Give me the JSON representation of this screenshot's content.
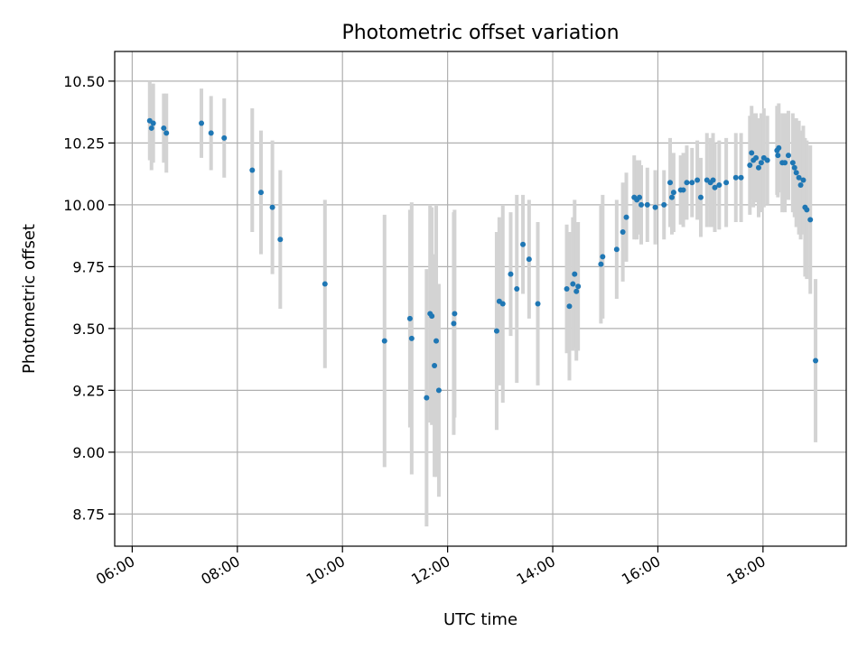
{
  "chart_data": {
    "type": "scatter",
    "title": "Photometric offset variation",
    "xlabel": "UTC time",
    "ylabel": "Photometric offset",
    "x_axis_type": "time",
    "xlim": [
      "05:40",
      "19:35"
    ],
    "ylim": [
      8.62,
      10.62
    ],
    "x_ticks": [
      "06:00",
      "08:00",
      "10:00",
      "12:00",
      "14:00",
      "16:00",
      "18:00"
    ],
    "y_ticks": [
      "8.75",
      "9.00",
      "9.25",
      "9.50",
      "9.75",
      "10.00",
      "10.25",
      "10.50"
    ],
    "grid": true,
    "colors": {
      "points": "#1f77b4",
      "error_bars": "#d3d3d3",
      "grid": "#b0b0b0"
    },
    "points": [
      {
        "x": "06:20",
        "y": 10.34,
        "err": 0.16
      },
      {
        "x": "06:22",
        "y": 10.31,
        "err": 0.17
      },
      {
        "x": "06:24",
        "y": 10.33,
        "err": 0.16
      },
      {
        "x": "06:36",
        "y": 10.31,
        "err": 0.14
      },
      {
        "x": "06:39",
        "y": 10.29,
        "err": 0.16
      },
      {
        "x": "07:19",
        "y": 10.33,
        "err": 0.14
      },
      {
        "x": "07:30",
        "y": 10.29,
        "err": 0.15
      },
      {
        "x": "07:45",
        "y": 10.27,
        "err": 0.16
      },
      {
        "x": "08:17",
        "y": 10.14,
        "err": 0.25
      },
      {
        "x": "08:27",
        "y": 10.05,
        "err": 0.25
      },
      {
        "x": "08:40",
        "y": 9.99,
        "err": 0.27
      },
      {
        "x": "08:49",
        "y": 9.86,
        "err": 0.28
      },
      {
        "x": "09:40",
        "y": 9.68,
        "err": 0.34
      },
      {
        "x": "10:48",
        "y": 9.45,
        "err": 0.51
      },
      {
        "x": "11:17",
        "y": 9.54,
        "err": 0.44
      },
      {
        "x": "11:19",
        "y": 9.46,
        "err": 0.55
      },
      {
        "x": "11:36",
        "y": 9.22,
        "err": 0.52
      },
      {
        "x": "11:40",
        "y": 9.56,
        "err": 0.44
      },
      {
        "x": "11:42",
        "y": 9.55,
        "err": 0.44
      },
      {
        "x": "11:45",
        "y": 9.35,
        "err": 0.45
      },
      {
        "x": "11:47",
        "y": 9.45,
        "err": 0.55
      },
      {
        "x": "11:50",
        "y": 9.25,
        "err": 0.43
      },
      {
        "x": "12:07",
        "y": 9.52,
        "err": 0.45
      },
      {
        "x": "12:08",
        "y": 9.56,
        "err": 0.42
      },
      {
        "x": "12:56",
        "y": 9.49,
        "err": 0.4
      },
      {
        "x": "12:59",
        "y": 9.61,
        "err": 0.34
      },
      {
        "x": "13:03",
        "y": 9.6,
        "err": 0.4
      },
      {
        "x": "13:12",
        "y": 9.72,
        "err": 0.25
      },
      {
        "x": "13:19",
        "y": 9.66,
        "err": 0.38
      },
      {
        "x": "13:26",
        "y": 9.84,
        "err": 0.2
      },
      {
        "x": "13:33",
        "y": 9.78,
        "err": 0.24
      },
      {
        "x": "13:43",
        "y": 9.6,
        "err": 0.33
      },
      {
        "x": "14:16",
        "y": 9.66,
        "err": 0.26
      },
      {
        "x": "14:19",
        "y": 9.59,
        "err": 0.3
      },
      {
        "x": "14:23",
        "y": 9.68,
        "err": 0.27
      },
      {
        "x": "14:25",
        "y": 9.72,
        "err": 0.3
      },
      {
        "x": "14:27",
        "y": 9.65,
        "err": 0.28
      },
      {
        "x": "14:29",
        "y": 9.67,
        "err": 0.26
      },
      {
        "x": "14:55",
        "y": 9.76,
        "err": 0.24
      },
      {
        "x": "14:57",
        "y": 9.79,
        "err": 0.25
      },
      {
        "x": "15:13",
        "y": 9.82,
        "err": 0.2
      },
      {
        "x": "15:20",
        "y": 9.89,
        "err": 0.2
      },
      {
        "x": "15:24",
        "y": 9.95,
        "err": 0.18
      },
      {
        "x": "15:33",
        "y": 10.03,
        "err": 0.17
      },
      {
        "x": "15:36",
        "y": 10.02,
        "err": 0.16
      },
      {
        "x": "15:39",
        "y": 10.03,
        "err": 0.15
      },
      {
        "x": "15:41",
        "y": 10.0,
        "err": 0.16
      },
      {
        "x": "15:48",
        "y": 10.0,
        "err": 0.15
      },
      {
        "x": "15:57",
        "y": 9.99,
        "err": 0.15
      },
      {
        "x": "16:07",
        "y": 10.0,
        "err": 0.14
      },
      {
        "x": "16:14",
        "y": 10.09,
        "err": 0.18
      },
      {
        "x": "16:16",
        "y": 10.03,
        "err": 0.15
      },
      {
        "x": "16:18",
        "y": 10.05,
        "err": 0.16
      },
      {
        "x": "16:26",
        "y": 10.06,
        "err": 0.14
      },
      {
        "x": "16:29",
        "y": 10.06,
        "err": 0.15
      },
      {
        "x": "16:33",
        "y": 10.09,
        "err": 0.15
      },
      {
        "x": "16:39",
        "y": 10.09,
        "err": 0.14
      },
      {
        "x": "16:45",
        "y": 10.1,
        "err": 0.16
      },
      {
        "x": "16:49",
        "y": 10.03,
        "err": 0.16
      },
      {
        "x": "16:56",
        "y": 10.1,
        "err": 0.19
      },
      {
        "x": "17:00",
        "y": 10.09,
        "err": 0.18
      },
      {
        "x": "17:03",
        "y": 10.1,
        "err": 0.19
      },
      {
        "x": "17:05",
        "y": 10.07,
        "err": 0.18
      },
      {
        "x": "17:10",
        "y": 10.08,
        "err": 0.18
      },
      {
        "x": "17:18",
        "y": 10.09,
        "err": 0.18
      },
      {
        "x": "17:29",
        "y": 10.11,
        "err": 0.18
      },
      {
        "x": "17:35",
        "y": 10.11,
        "err": 0.18
      },
      {
        "x": "17:45",
        "y": 10.16,
        "err": 0.2
      },
      {
        "x": "17:47",
        "y": 10.21,
        "err": 0.19
      },
      {
        "x": "17:49",
        "y": 10.18,
        "err": 0.19
      },
      {
        "x": "17:52",
        "y": 10.19,
        "err": 0.18
      },
      {
        "x": "17:55",
        "y": 10.15,
        "err": 0.2
      },
      {
        "x": "17:58",
        "y": 10.17,
        "err": 0.2
      },
      {
        "x": "18:01",
        "y": 10.19,
        "err": 0.2
      },
      {
        "x": "18:05",
        "y": 10.18,
        "err": 0.18
      },
      {
        "x": "18:16",
        "y": 10.22,
        "err": 0.18
      },
      {
        "x": "18:17",
        "y": 10.2,
        "err": 0.17
      },
      {
        "x": "18:18",
        "y": 10.23,
        "err": 0.18
      },
      {
        "x": "18:22",
        "y": 10.17,
        "err": 0.2
      },
      {
        "x": "18:25",
        "y": 10.17,
        "err": 0.2
      },
      {
        "x": "18:29",
        "y": 10.2,
        "err": 0.18
      },
      {
        "x": "18:34",
        "y": 10.17,
        "err": 0.2
      },
      {
        "x": "18:36",
        "y": 10.15,
        "err": 0.2
      },
      {
        "x": "18:38",
        "y": 10.13,
        "err": 0.22
      },
      {
        "x": "18:41",
        "y": 10.11,
        "err": 0.23
      },
      {
        "x": "18:43",
        "y": 10.08,
        "err": 0.22
      },
      {
        "x": "18:46",
        "y": 10.1,
        "err": 0.22
      },
      {
        "x": "18:48",
        "y": 9.99,
        "err": 0.28
      },
      {
        "x": "18:50",
        "y": 9.98,
        "err": 0.28
      },
      {
        "x": "18:54",
        "y": 9.94,
        "err": 0.3
      },
      {
        "x": "19:00",
        "y": 9.37,
        "err": 0.33
      }
    ]
  }
}
